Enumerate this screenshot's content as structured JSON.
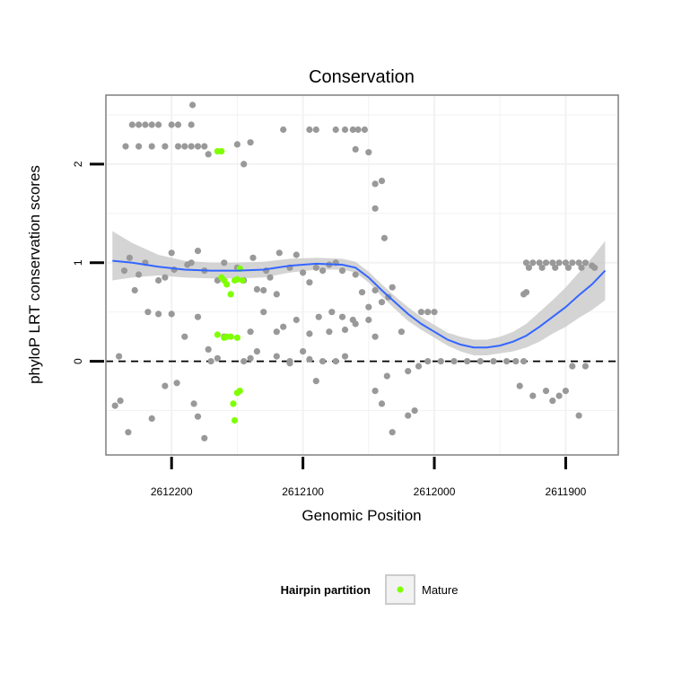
{
  "chart_data": {
    "type": "scatter",
    "title": "Conservation",
    "xlabel": "Genomic Position",
    "ylabel": "phyloP LRT conservation scores",
    "xlim": [
      2612250,
      2611860
    ],
    "xdirection": "reversed",
    "ylim": [
      -0.95,
      2.7
    ],
    "x_ticks": [
      2612200,
      2612100,
      2612000,
      2611900
    ],
    "x_tick_labels": [
      "2612200",
      "2612100",
      "2612000",
      "2611900"
    ],
    "y_ticks": [
      0,
      1,
      2
    ],
    "y_tick_labels": [
      "0",
      "1",
      "2"
    ],
    "y_minor_gridlines": [
      -0.5,
      0.5,
      1.5,
      2.5
    ],
    "x_minor_gridlines": [
      2612150,
      2612050,
      2611950
    ],
    "reference_line": {
      "y": 0,
      "style": "dashed",
      "color": "#000000"
    },
    "colors": {
      "other_points": "#999999",
      "mature_points": "#7fff00",
      "smooth_line": "#3366ff",
      "confidence_band": "#cccccc",
      "panel_border": "#7f7f7f",
      "gridline": "#f2f2f2"
    },
    "legend": {
      "title": "Hairpin partition",
      "position": "bottom",
      "entries": [
        {
          "label": "Mature",
          "color": "#7fff00"
        }
      ]
    },
    "series": [
      {
        "name": "Other",
        "color": "#999999",
        "points": [
          [
            2612243,
            -0.45
          ],
          [
            2612239,
            -0.4
          ],
          [
            2612233,
            -0.72
          ],
          [
            2612215,
            -0.58
          ],
          [
            2612205,
            -0.25
          ],
          [
            2612196,
            -0.22
          ],
          [
            2612183,
            -0.43
          ],
          [
            2612180,
            -0.56
          ],
          [
            2612175,
            -0.78
          ],
          [
            2612190,
            0.25
          ],
          [
            2612172,
            0.12
          ],
          [
            2612165,
            0.03
          ],
          [
            2612145,
            0.0
          ],
          [
            2612140,
            0.03
          ],
          [
            2612120,
            0.3
          ],
          [
            2612110,
            -0.02
          ],
          [
            2612100,
            0.1
          ],
          [
            2612090,
            -0.2
          ],
          [
            2612080,
            0.3
          ],
          [
            2612070,
            0.45
          ],
          [
            2612060,
            0.38
          ],
          [
            2612240,
            0.05
          ],
          [
            2612225,
            0.88
          ],
          [
            2612200,
            1.1
          ],
          [
            2612188,
            0.98
          ],
          [
            2612180,
            1.12
          ],
          [
            2612138,
            1.05
          ],
          [
            2612128,
            0.92
          ],
          [
            2612118,
            1.1
          ],
          [
            2612105,
            1.08
          ],
          [
            2612095,
            0.8
          ],
          [
            2612085,
            0.92
          ],
          [
            2612075,
            1.0
          ],
          [
            2612060,
            0.88
          ],
          [
            2612045,
            0.72
          ],
          [
            2612035,
            0.65
          ],
          [
            2612032,
            0.75
          ],
          [
            2612205,
            0.85
          ],
          [
            2612145,
            0.82
          ],
          [
            2612135,
            0.73
          ],
          [
            2612236,
            0.92
          ],
          [
            2612232,
            1.05
          ],
          [
            2612228,
            0.72
          ],
          [
            2612220,
            1.0
          ],
          [
            2612210,
            0.82
          ],
          [
            2612198,
            0.93
          ],
          [
            2612185,
            1.0
          ],
          [
            2612175,
            0.92
          ],
          [
            2612165,
            0.82
          ],
          [
            2612160,
            1.0
          ],
          [
            2612150,
            0.95
          ],
          [
            2612130,
            0.72
          ],
          [
            2612125,
            0.85
          ],
          [
            2612120,
            0.68
          ],
          [
            2612110,
            0.95
          ],
          [
            2612100,
            0.9
          ],
          [
            2612090,
            0.95
          ],
          [
            2612080,
            0.98
          ],
          [
            2612070,
            0.92
          ],
          [
            2612055,
            0.7
          ],
          [
            2612050,
            0.55
          ],
          [
            2612040,
            0.6
          ],
          [
            2612025,
            0.3
          ],
          [
            2612020,
            -0.1
          ],
          [
            2612012,
            -0.05
          ],
          [
            2612005,
            0.0
          ],
          [
            2611995,
            0.0
          ],
          [
            2611985,
            0.0
          ],
          [
            2611975,
            0.0
          ],
          [
            2611965,
            0.0
          ],
          [
            2611955,
            0.0
          ],
          [
            2611945,
            0.0
          ],
          [
            2611938,
            0.0
          ],
          [
            2611932,
            0.0
          ],
          [
            2612045,
            -0.3
          ],
          [
            2612040,
            -0.43
          ],
          [
            2612036,
            -0.15
          ],
          [
            2612032,
            -0.72
          ],
          [
            2612020,
            -0.55
          ],
          [
            2612015,
            -0.5
          ],
          [
            2611935,
            -0.25
          ],
          [
            2611925,
            -0.35
          ],
          [
            2611915,
            -0.3
          ],
          [
            2611910,
            -0.4
          ],
          [
            2611905,
            -0.35
          ],
          [
            2611900,
            -0.3
          ],
          [
            2611895,
            -0.05
          ],
          [
            2611890,
            -0.55
          ],
          [
            2611885,
            -0.05
          ],
          [
            2611930,
            0.7
          ],
          [
            2611932,
            0.68
          ],
          [
            2612230,
            2.4
          ],
          [
            2612225,
            2.4
          ],
          [
            2612220,
            2.4
          ],
          [
            2612215,
            2.4
          ],
          [
            2612210,
            2.4
          ],
          [
            2612200,
            2.4
          ],
          [
            2612195,
            2.4
          ],
          [
            2612185,
            2.4
          ],
          [
            2612235,
            2.18
          ],
          [
            2612225,
            2.18
          ],
          [
            2612215,
            2.18
          ],
          [
            2612205,
            2.18
          ],
          [
            2612195,
            2.18
          ],
          [
            2612190,
            2.18
          ],
          [
            2612185,
            2.18
          ],
          [
            2612180,
            2.18
          ],
          [
            2612175,
            2.18
          ],
          [
            2612184,
            2.6
          ],
          [
            2612172,
            2.1
          ],
          [
            2612150,
            2.2
          ],
          [
            2612140,
            2.22
          ],
          [
            2612145,
            2.0
          ],
          [
            2612115,
            2.35
          ],
          [
            2612095,
            2.35
          ],
          [
            2612090,
            2.35
          ],
          [
            2612075,
            2.35
          ],
          [
            2612068,
            2.35
          ],
          [
            2612062,
            2.35
          ],
          [
            2612058,
            2.35
          ],
          [
            2612053,
            2.35
          ],
          [
            2612060,
            2.15
          ],
          [
            2612050,
            2.12
          ],
          [
            2612045,
            1.8
          ],
          [
            2612040,
            1.83
          ],
          [
            2612045,
            1.55
          ],
          [
            2612038,
            1.25
          ],
          [
            2612010,
            0.5
          ],
          [
            2612005,
            0.5
          ],
          [
            2612000,
            0.5
          ],
          [
            2612140,
            0.3
          ],
          [
            2612130,
            0.5
          ],
          [
            2612115,
            0.35
          ],
          [
            2612105,
            0.42
          ],
          [
            2612095,
            0.28
          ],
          [
            2612088,
            0.45
          ],
          [
            2612078,
            0.5
          ],
          [
            2612068,
            0.32
          ],
          [
            2612062,
            0.42
          ],
          [
            2612050,
            0.42
          ],
          [
            2612045,
            0.25
          ],
          [
            2612218,
            0.5
          ],
          [
            2612210,
            0.48
          ],
          [
            2612200,
            0.48
          ],
          [
            2612180,
            0.45
          ],
          [
            2612170,
            0.0
          ],
          [
            2612160,
            0.25
          ],
          [
            2612135,
            0.1
          ],
          [
            2612120,
            0.05
          ],
          [
            2612110,
            0.0
          ],
          [
            2612095,
            0.02
          ],
          [
            2612085,
            0.0
          ],
          [
            2612075,
            0.0
          ],
          [
            2612068,
            0.05
          ],
          [
            2611930,
            1.0
          ],
          [
            2611925,
            1.0
          ],
          [
            2611920,
            1.0
          ],
          [
            2611915,
            1.0
          ],
          [
            2611910,
            1.0
          ],
          [
            2611905,
            1.0
          ],
          [
            2611900,
            1.0
          ],
          [
            2611895,
            1.0
          ],
          [
            2611890,
            1.0
          ],
          [
            2611885,
            1.0
          ],
          [
            2611880,
            0.97
          ],
          [
            2611928,
            0.95
          ],
          [
            2611918,
            0.95
          ],
          [
            2611908,
            0.95
          ],
          [
            2611898,
            0.95
          ],
          [
            2611888,
            0.95
          ],
          [
            2611878,
            0.95
          ]
        ]
      },
      {
        "name": "Mature",
        "color": "#7fff00",
        "points": [
          [
            2612165,
            2.13
          ],
          [
            2612162,
            2.13
          ],
          [
            2612160,
            0.82
          ],
          [
            2612158,
            0.78
          ],
          [
            2612155,
            0.68
          ],
          [
            2612152,
            0.82
          ],
          [
            2612150,
            0.83
          ],
          [
            2612148,
            0.94
          ],
          [
            2612146,
            0.82
          ],
          [
            2612162,
            0.85
          ],
          [
            2612158,
            0.25
          ],
          [
            2612155,
            0.25
          ],
          [
            2612150,
            0.24
          ],
          [
            2612165,
            0.27
          ],
          [
            2612160,
            0.24
          ],
          [
            2612150,
            -0.32
          ],
          [
            2612148,
            -0.3
          ],
          [
            2612153,
            -0.43
          ],
          [
            2612152,
            -0.6
          ]
        ]
      }
    ],
    "smooth": {
      "x": [
        2612245,
        2612230,
        2612210,
        2612190,
        2612170,
        2612150,
        2612130,
        2612110,
        2612090,
        2612070,
        2612060,
        2612050,
        2612040,
        2612030,
        2612020,
        2612010,
        2612000,
        2611990,
        2611980,
        2611970,
        2611960,
        2611950,
        2611940,
        2611930,
        2611920,
        2611910,
        2611900,
        2611890,
        2611880,
        2611870
      ],
      "y": [
        1.02,
        1.0,
        0.96,
        0.93,
        0.92,
        0.92,
        0.93,
        0.97,
        0.99,
        0.98,
        0.95,
        0.85,
        0.72,
        0.6,
        0.48,
        0.38,
        0.3,
        0.22,
        0.17,
        0.14,
        0.14,
        0.16,
        0.2,
        0.26,
        0.35,
        0.45,
        0.55,
        0.67,
        0.78,
        0.92
      ],
      "lower": [
        0.82,
        0.85,
        0.87,
        0.85,
        0.84,
        0.84,
        0.85,
        0.9,
        0.93,
        0.93,
        0.9,
        0.8,
        0.66,
        0.53,
        0.41,
        0.32,
        0.24,
        0.16,
        0.1,
        0.06,
        0.06,
        0.08,
        0.1,
        0.14,
        0.2,
        0.28,
        0.35,
        0.44,
        0.52,
        0.62
      ],
      "upper": [
        1.32,
        1.2,
        1.08,
        1.02,
        1.0,
        1.0,
        1.01,
        1.04,
        1.05,
        1.04,
        1.01,
        0.91,
        0.78,
        0.66,
        0.55,
        0.45,
        0.37,
        0.29,
        0.25,
        0.22,
        0.22,
        0.25,
        0.3,
        0.38,
        0.5,
        0.62,
        0.75,
        0.9,
        1.05,
        1.22
      ]
    }
  }
}
